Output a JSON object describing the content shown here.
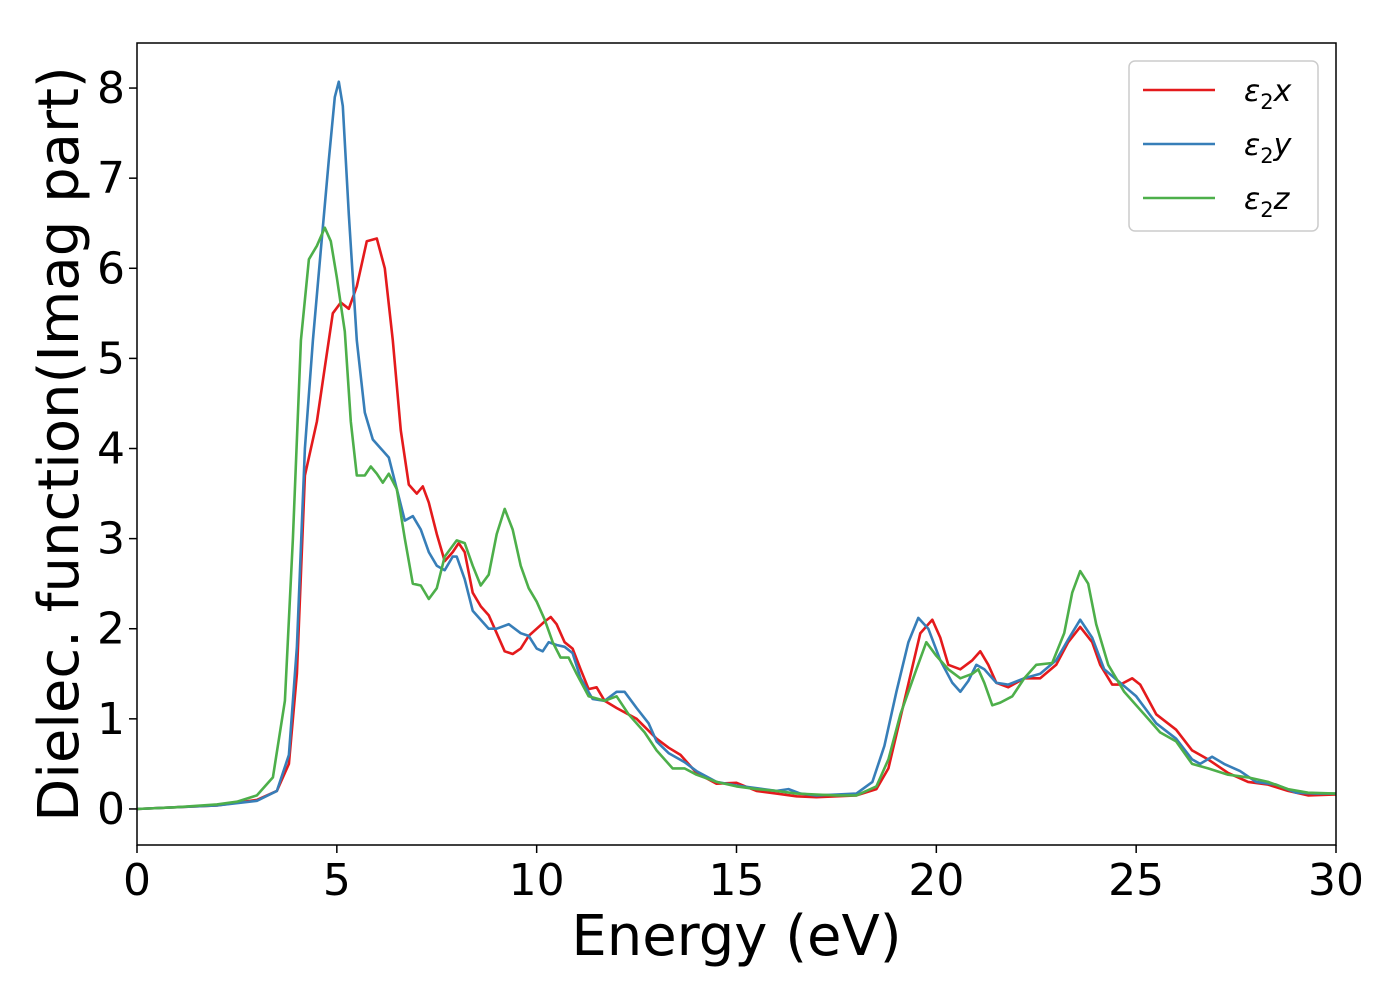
{
  "chart_data": {
    "type": "line",
    "xlabel": "Energy (eV)",
    "ylabel": "Dielec. function(Imag part)",
    "xlim": [
      0,
      30
    ],
    "ylim": [
      -0.4,
      8.5
    ],
    "xticks": [
      0,
      5,
      10,
      15,
      20,
      25,
      30
    ],
    "yticks": [
      0,
      1,
      2,
      3,
      4,
      5,
      6,
      7,
      8
    ],
    "grid": false,
    "legend_position": "top-right",
    "series": [
      {
        "name": "ε₂x",
        "name_main": "ε",
        "name_sub": "2",
        "name_tail": "x",
        "color": "#e41a1c",
        "points": [
          [
            0,
            0.0
          ],
          [
            1,
            0.02
          ],
          [
            2,
            0.04
          ],
          [
            3,
            0.1
          ],
          [
            3.5,
            0.2
          ],
          [
            3.8,
            0.5
          ],
          [
            4.0,
            1.5
          ],
          [
            4.2,
            3.7
          ],
          [
            4.5,
            4.3
          ],
          [
            4.7,
            4.9
          ],
          [
            4.9,
            5.5
          ],
          [
            5.1,
            5.62
          ],
          [
            5.3,
            5.55
          ],
          [
            5.5,
            5.8
          ],
          [
            5.75,
            6.3
          ],
          [
            6.0,
            6.33
          ],
          [
            6.2,
            6.0
          ],
          [
            6.4,
            5.2
          ],
          [
            6.6,
            4.2
          ],
          [
            6.8,
            3.6
          ],
          [
            7.0,
            3.5
          ],
          [
            7.15,
            3.58
          ],
          [
            7.3,
            3.4
          ],
          [
            7.5,
            3.05
          ],
          [
            7.7,
            2.75
          ],
          [
            7.9,
            2.85
          ],
          [
            8.05,
            2.95
          ],
          [
            8.2,
            2.85
          ],
          [
            8.4,
            2.4
          ],
          [
            8.6,
            2.25
          ],
          [
            8.8,
            2.15
          ],
          [
            9.0,
            1.95
          ],
          [
            9.2,
            1.75
          ],
          [
            9.4,
            1.72
          ],
          [
            9.6,
            1.78
          ],
          [
            9.8,
            1.92
          ],
          [
            10.0,
            2.0
          ],
          [
            10.2,
            2.08
          ],
          [
            10.35,
            2.13
          ],
          [
            10.5,
            2.05
          ],
          [
            10.7,
            1.85
          ],
          [
            10.9,
            1.78
          ],
          [
            11.1,
            1.55
          ],
          [
            11.3,
            1.33
          ],
          [
            11.5,
            1.35
          ],
          [
            11.7,
            1.2
          ],
          [
            12.0,
            1.12
          ],
          [
            12.5,
            1.0
          ],
          [
            13.0,
            0.78
          ],
          [
            13.3,
            0.68
          ],
          [
            13.6,
            0.6
          ],
          [
            14.0,
            0.4
          ],
          [
            14.5,
            0.28
          ],
          [
            15.0,
            0.29
          ],
          [
            15.5,
            0.2
          ],
          [
            16.0,
            0.17
          ],
          [
            16.5,
            0.14
          ],
          [
            17.0,
            0.13
          ],
          [
            17.5,
            0.14
          ],
          [
            18.0,
            0.15
          ],
          [
            18.5,
            0.22
          ],
          [
            18.8,
            0.45
          ],
          [
            19.2,
            1.2
          ],
          [
            19.6,
            1.95
          ],
          [
            19.9,
            2.1
          ],
          [
            20.1,
            1.9
          ],
          [
            20.3,
            1.6
          ],
          [
            20.6,
            1.55
          ],
          [
            20.9,
            1.65
          ],
          [
            21.1,
            1.75
          ],
          [
            21.3,
            1.6
          ],
          [
            21.5,
            1.4
          ],
          [
            21.8,
            1.35
          ],
          [
            22.2,
            1.45
          ],
          [
            22.6,
            1.45
          ],
          [
            23.0,
            1.6
          ],
          [
            23.3,
            1.85
          ],
          [
            23.6,
            2.02
          ],
          [
            23.9,
            1.85
          ],
          [
            24.1,
            1.6
          ],
          [
            24.4,
            1.38
          ],
          [
            24.6,
            1.38
          ],
          [
            24.9,
            1.45
          ],
          [
            25.1,
            1.38
          ],
          [
            25.5,
            1.05
          ],
          [
            26.0,
            0.88
          ],
          [
            26.4,
            0.65
          ],
          [
            26.8,
            0.55
          ],
          [
            27.3,
            0.4
          ],
          [
            27.8,
            0.3
          ],
          [
            28.3,
            0.27
          ],
          [
            28.8,
            0.2
          ],
          [
            29.3,
            0.15
          ],
          [
            30.0,
            0.16
          ]
        ]
      },
      {
        "name": "ε₂y",
        "name_main": "ε",
        "name_sub": "2",
        "name_tail": "y",
        "color": "#377eb8",
        "points": [
          [
            0,
            0.0
          ],
          [
            1,
            0.02
          ],
          [
            2,
            0.04
          ],
          [
            3,
            0.09
          ],
          [
            3.5,
            0.2
          ],
          [
            3.8,
            0.6
          ],
          [
            4.0,
            1.8
          ],
          [
            4.2,
            4.0
          ],
          [
            4.4,
            5.2
          ],
          [
            4.6,
            6.2
          ],
          [
            4.8,
            7.2
          ],
          [
            4.95,
            7.9
          ],
          [
            5.05,
            8.07
          ],
          [
            5.15,
            7.8
          ],
          [
            5.3,
            6.6
          ],
          [
            5.5,
            5.2
          ],
          [
            5.7,
            4.4
          ],
          [
            5.9,
            4.1
          ],
          [
            6.1,
            4.0
          ],
          [
            6.3,
            3.9
          ],
          [
            6.5,
            3.55
          ],
          [
            6.7,
            3.2
          ],
          [
            6.9,
            3.25
          ],
          [
            7.1,
            3.1
          ],
          [
            7.3,
            2.85
          ],
          [
            7.5,
            2.7
          ],
          [
            7.7,
            2.65
          ],
          [
            7.9,
            2.8
          ],
          [
            8.0,
            2.8
          ],
          [
            8.2,
            2.55
          ],
          [
            8.4,
            2.2
          ],
          [
            8.6,
            2.1
          ],
          [
            8.8,
            2.0
          ],
          [
            9.0,
            2.0
          ],
          [
            9.3,
            2.05
          ],
          [
            9.6,
            1.95
          ],
          [
            9.8,
            1.92
          ],
          [
            10.0,
            1.78
          ],
          [
            10.15,
            1.75
          ],
          [
            10.3,
            1.85
          ],
          [
            10.5,
            1.82
          ],
          [
            10.7,
            1.8
          ],
          [
            10.9,
            1.73
          ],
          [
            11.1,
            1.45
          ],
          [
            11.4,
            1.22
          ],
          [
            11.7,
            1.2
          ],
          [
            12.0,
            1.3
          ],
          [
            12.2,
            1.3
          ],
          [
            12.5,
            1.12
          ],
          [
            12.8,
            0.95
          ],
          [
            13.0,
            0.75
          ],
          [
            13.3,
            0.62
          ],
          [
            13.7,
            0.52
          ],
          [
            14.0,
            0.42
          ],
          [
            14.5,
            0.3
          ],
          [
            15.0,
            0.26
          ],
          [
            15.5,
            0.23
          ],
          [
            16.0,
            0.2
          ],
          [
            16.3,
            0.22
          ],
          [
            16.6,
            0.17
          ],
          [
            17.0,
            0.15
          ],
          [
            17.5,
            0.16
          ],
          [
            18.0,
            0.17
          ],
          [
            18.4,
            0.3
          ],
          [
            18.7,
            0.7
          ],
          [
            19.0,
            1.3
          ],
          [
            19.3,
            1.85
          ],
          [
            19.55,
            2.12
          ],
          [
            19.8,
            2.0
          ],
          [
            20.1,
            1.65
          ],
          [
            20.4,
            1.4
          ],
          [
            20.6,
            1.3
          ],
          [
            20.8,
            1.42
          ],
          [
            21.0,
            1.6
          ],
          [
            21.2,
            1.55
          ],
          [
            21.5,
            1.4
          ],
          [
            21.8,
            1.38
          ],
          [
            22.2,
            1.45
          ],
          [
            22.6,
            1.5
          ],
          [
            23.0,
            1.65
          ],
          [
            23.3,
            1.88
          ],
          [
            23.6,
            2.1
          ],
          [
            23.9,
            1.9
          ],
          [
            24.2,
            1.55
          ],
          [
            24.6,
            1.4
          ],
          [
            25.0,
            1.25
          ],
          [
            25.5,
            0.95
          ],
          [
            26.0,
            0.78
          ],
          [
            26.4,
            0.55
          ],
          [
            26.6,
            0.5
          ],
          [
            26.9,
            0.58
          ],
          [
            27.2,
            0.5
          ],
          [
            27.6,
            0.42
          ],
          [
            28.0,
            0.3
          ],
          [
            28.5,
            0.27
          ],
          [
            29.0,
            0.18
          ],
          [
            29.5,
            0.17
          ],
          [
            30.0,
            0.17
          ]
        ]
      },
      {
        "name": "ε₂z",
        "name_main": "ε",
        "name_sub": "2",
        "name_tail": "z",
        "color": "#4daf4a",
        "points": [
          [
            0,
            0.0
          ],
          [
            1,
            0.02
          ],
          [
            2,
            0.05
          ],
          [
            2.5,
            0.08
          ],
          [
            3,
            0.15
          ],
          [
            3.4,
            0.35
          ],
          [
            3.7,
            1.2
          ],
          [
            3.9,
            3.0
          ],
          [
            4.1,
            5.2
          ],
          [
            4.3,
            6.1
          ],
          [
            4.5,
            6.25
          ],
          [
            4.7,
            6.45
          ],
          [
            4.85,
            6.3
          ],
          [
            5.0,
            5.9
          ],
          [
            5.2,
            5.3
          ],
          [
            5.35,
            4.3
          ],
          [
            5.5,
            3.7
          ],
          [
            5.7,
            3.7
          ],
          [
            5.85,
            3.8
          ],
          [
            6.0,
            3.72
          ],
          [
            6.15,
            3.62
          ],
          [
            6.3,
            3.72
          ],
          [
            6.5,
            3.55
          ],
          [
            6.7,
            3.0
          ],
          [
            6.9,
            2.5
          ],
          [
            7.1,
            2.48
          ],
          [
            7.3,
            2.33
          ],
          [
            7.5,
            2.45
          ],
          [
            7.7,
            2.8
          ],
          [
            8.0,
            2.98
          ],
          [
            8.2,
            2.95
          ],
          [
            8.4,
            2.7
          ],
          [
            8.6,
            2.48
          ],
          [
            8.8,
            2.6
          ],
          [
            9.0,
            3.05
          ],
          [
            9.2,
            3.33
          ],
          [
            9.4,
            3.1
          ],
          [
            9.6,
            2.7
          ],
          [
            9.8,
            2.45
          ],
          [
            10.0,
            2.3
          ],
          [
            10.2,
            2.1
          ],
          [
            10.4,
            1.85
          ],
          [
            10.6,
            1.68
          ],
          [
            10.8,
            1.68
          ],
          [
            11.0,
            1.5
          ],
          [
            11.3,
            1.25
          ],
          [
            11.7,
            1.2
          ],
          [
            12.0,
            1.25
          ],
          [
            12.3,
            1.05
          ],
          [
            12.7,
            0.85
          ],
          [
            13.0,
            0.65
          ],
          [
            13.4,
            0.45
          ],
          [
            13.7,
            0.45
          ],
          [
            14.0,
            0.38
          ],
          [
            14.5,
            0.3
          ],
          [
            15.0,
            0.25
          ],
          [
            15.5,
            0.22
          ],
          [
            16.0,
            0.2
          ],
          [
            16.5,
            0.17
          ],
          [
            17.0,
            0.16
          ],
          [
            17.5,
            0.15
          ],
          [
            18.0,
            0.15
          ],
          [
            18.5,
            0.25
          ],
          [
            18.8,
            0.55
          ],
          [
            19.1,
            1.05
          ],
          [
            19.5,
            1.55
          ],
          [
            19.75,
            1.85
          ],
          [
            20.0,
            1.7
          ],
          [
            20.3,
            1.55
          ],
          [
            20.6,
            1.45
          ],
          [
            20.9,
            1.5
          ],
          [
            21.05,
            1.55
          ],
          [
            21.2,
            1.4
          ],
          [
            21.4,
            1.15
          ],
          [
            21.6,
            1.18
          ],
          [
            21.9,
            1.25
          ],
          [
            22.2,
            1.45
          ],
          [
            22.5,
            1.6
          ],
          [
            22.9,
            1.62
          ],
          [
            23.2,
            1.95
          ],
          [
            23.4,
            2.4
          ],
          [
            23.6,
            2.64
          ],
          [
            23.8,
            2.5
          ],
          [
            24.0,
            2.05
          ],
          [
            24.3,
            1.6
          ],
          [
            24.7,
            1.3
          ],
          [
            25.2,
            1.05
          ],
          [
            25.6,
            0.85
          ],
          [
            26.0,
            0.75
          ],
          [
            26.4,
            0.5
          ],
          [
            26.8,
            0.45
          ],
          [
            27.3,
            0.38
          ],
          [
            27.8,
            0.35
          ],
          [
            28.3,
            0.3
          ],
          [
            28.8,
            0.22
          ],
          [
            29.3,
            0.18
          ],
          [
            30.0,
            0.17
          ]
        ]
      }
    ]
  }
}
